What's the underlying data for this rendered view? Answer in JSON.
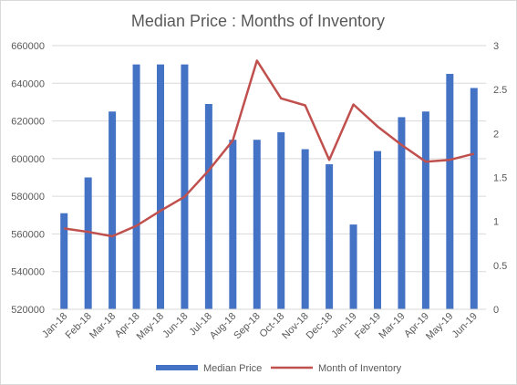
{
  "chart_data": {
    "type": "bar+line",
    "title": "Median Price : Months of Inventory",
    "categories": [
      "Jan-18",
      "Feb-18",
      "Mar-18",
      "Apr-18",
      "May-18",
      "Jun-18",
      "Jul-18",
      "Aug-18",
      "Sep-18",
      "Oct-18",
      "Nov-18",
      "Dec-18",
      "Jan-19",
      "Feb-19",
      "Mar-19",
      "Apr-19",
      "May-19",
      "Jun-19"
    ],
    "series": [
      {
        "name": "Median Price",
        "type": "bar",
        "axis": "left",
        "color": "#4472c4",
        "values": [
          571000,
          590000,
          625000,
          650000,
          650000,
          650000,
          629000,
          610000,
          610000,
          614000,
          605000,
          597000,
          565000,
          604000,
          622000,
          625000,
          645000,
          637500
        ]
      },
      {
        "name": "Month of Inventory",
        "type": "line",
        "axis": "right",
        "color": "#c0504d",
        "values": [
          0.92,
          0.88,
          0.83,
          0.95,
          1.12,
          1.28,
          1.58,
          1.92,
          2.83,
          2.4,
          2.32,
          1.7,
          2.33,
          2.08,
          1.87,
          1.68,
          1.7,
          1.77
        ]
      }
    ],
    "y_left": {
      "min": 520000,
      "max": 660000,
      "ticks": [
        "520000",
        "540000",
        "560000",
        "580000",
        "600000",
        "620000",
        "640000",
        "660000"
      ]
    },
    "y_right": {
      "min": 0,
      "max": 3,
      "ticks": [
        "0",
        "0.5",
        "1",
        "1.5",
        "2",
        "2.5",
        "3"
      ]
    },
    "grid": true,
    "legend": "bottom"
  }
}
